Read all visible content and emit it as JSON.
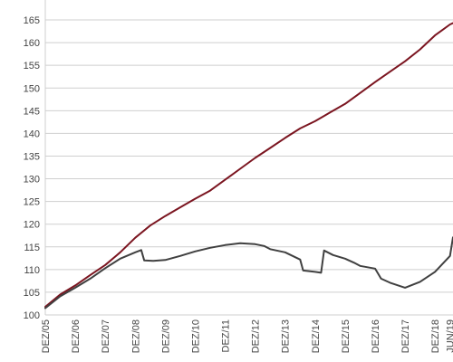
{
  "chart_data": {
    "type": "line",
    "title": "",
    "xlabel": "",
    "ylabel": "",
    "x_tick_labels": [
      "DEZ/05",
      "DEZ/06",
      "DEZ/07",
      "DEZ/08",
      "DEZ/09",
      "DEZ/10",
      "DEZ/11",
      "DEZ/12",
      "DEZ/13",
      "DEZ/14",
      "DEZ/15",
      "DEZ/16",
      "DEZ/17",
      "DEZ/18",
      "JUN/19"
    ],
    "x_tick_positions": [
      0,
      1,
      2,
      3,
      4,
      5,
      6,
      7,
      8,
      9,
      10,
      11,
      12,
      13,
      13.5
    ],
    "xlim": [
      0,
      13.6
    ],
    "yticks": [
      100,
      105,
      110,
      115,
      120,
      125,
      130,
      135,
      140,
      145,
      150,
      155,
      160,
      165
    ],
    "ylim": [
      100,
      167
    ],
    "grid": true,
    "legend": "none",
    "series": [
      {
        "color": "#7b1520",
        "x": [
          0,
          0.5,
          1,
          1.5,
          2,
          2.5,
          3,
          3.5,
          4,
          4.5,
          5,
          5.5,
          6,
          6.5,
          7,
          7.5,
          8,
          8.5,
          9,
          9.5,
          10,
          10.5,
          11,
          11.5,
          12,
          12.5,
          13,
          13.25,
          13.5,
          13.6
        ],
        "y": [
          101.8,
          104.5,
          106.5,
          108.8,
          111,
          113.8,
          117,
          119.7,
          121.8,
          123.7,
          125.6,
          127.4,
          129.8,
          132.2,
          134.6,
          136.8,
          139,
          141.1,
          142.7,
          144.6,
          146.5,
          148.9,
          151.3,
          153.6,
          155.9,
          158.5,
          161.6,
          162.8,
          164,
          164.3
        ]
      },
      {
        "color": "#404040",
        "x": [
          0,
          0.5,
          1,
          1.5,
          2,
          2.5,
          3,
          3.2,
          3.3,
          3.6,
          4,
          4.5,
          5,
          5.5,
          6,
          6.5,
          7,
          7.3,
          7.5,
          8,
          8.5,
          8.6,
          9,
          9.2,
          9.3,
          9.6,
          10,
          10.3,
          10.5,
          11,
          11.2,
          11.5,
          12,
          12.5,
          13,
          13.5,
          13.6
        ],
        "y": [
          101.5,
          104.1,
          106,
          108,
          110.3,
          112.4,
          113.8,
          114.3,
          112,
          111.9,
          112.1,
          113,
          114,
          114.8,
          115.4,
          115.8,
          115.6,
          115.2,
          114.5,
          113.8,
          112.2,
          109.8,
          109.5,
          109.3,
          114.2,
          113.2,
          112.4,
          111.5,
          110.8,
          110.2,
          108,
          107.1,
          106,
          107.3,
          109.5,
          113,
          117.1
        ]
      }
    ]
  }
}
